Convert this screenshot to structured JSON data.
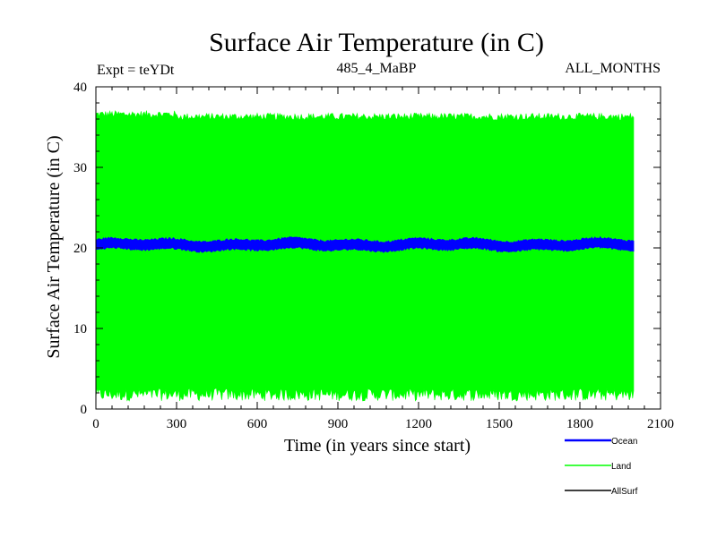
{
  "chart_data": {
    "type": "line",
    "title": "Surface Air Temperature (in C)",
    "subtitle_left": "Expt = teYDt",
    "subtitle_center": "485_4_MaBP",
    "subtitle_right": "ALL_MONTHS",
    "xlabel": "Time (in years since start)",
    "ylabel": "Surface Air Temperature (in C)",
    "xlim": [
      0,
      2100
    ],
    "ylim": [
      0,
      40
    ],
    "xticks": [
      "0",
      "300",
      "600",
      "900",
      "1200",
      "1500",
      "1800",
      "2100"
    ],
    "yticks": [
      "0",
      "10",
      "20",
      "30",
      "40"
    ],
    "x_range_of_data": [
      0,
      2000
    ],
    "series": [
      {
        "name": "Ocean",
        "color": "#0000ff",
        "band_low": 19.8,
        "band_high": 21.0,
        "mean": 20.4
      },
      {
        "name": "Land",
        "color": "#00ff00",
        "band_low": 1.0,
        "band_high": 36.3,
        "mean": 18.6
      },
      {
        "name": "AllSurf",
        "color": "#000000"
      }
    ]
  }
}
